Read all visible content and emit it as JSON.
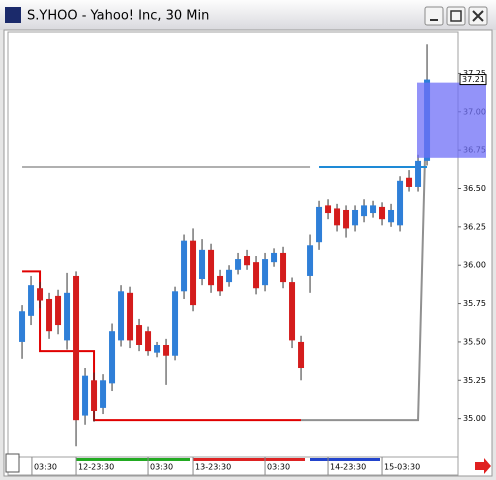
{
  "chart_data": {
    "type": "candlestick",
    "title": "S.YHOO - Yahoo! Inc, 30 Min",
    "open": [
      35.5,
      35.67,
      35.85,
      35.78,
      35.8,
      35.51,
      35.93,
      35.02,
      35.25,
      35.07,
      35.23,
      35.51,
      35.82,
      35.61,
      35.57,
      35.43,
      35.48,
      35.41,
      35.83,
      36.16,
      35.91,
      36.1,
      35.93,
      35.89,
      35.97,
      36.06,
      36.02,
      35.87,
      36.02,
      36.08,
      35.89,
      35.5,
      35.93,
      36.15,
      36.39,
      36.37,
      36.36,
      36.26,
      36.32,
      36.34,
      36.38,
      36.28,
      36.26,
      36.57,
      36.51,
      36.68
    ],
    "high": [
      35.74,
      35.93,
      35.89,
      35.82,
      35.84,
      35.95,
      35.96,
      35.33,
      35.3,
      35.29,
      35.62,
      35.87,
      35.86,
      35.65,
      35.6,
      35.5,
      35.52,
      35.86,
      36.2,
      36.24,
      36.17,
      36.14,
      35.97,
      36.0,
      36.08,
      36.1,
      36.06,
      36.08,
      36.11,
      36.12,
      35.92,
      35.54,
      36.2,
      36.42,
      36.43,
      36.4,
      36.39,
      36.39,
      36.43,
      36.42,
      36.41,
      36.4,
      36.58,
      36.62,
      36.72,
      37.44
    ],
    "low": [
      35.39,
      35.61,
      35.72,
      35.52,
      35.55,
      35.45,
      34.82,
      34.96,
      34.98,
      35.03,
      35.18,
      35.47,
      35.46,
      35.44,
      35.41,
      35.4,
      35.22,
      35.38,
      35.78,
      35.7,
      35.87,
      35.82,
      35.8,
      35.86,
      35.94,
      35.97,
      35.81,
      35.83,
      35.99,
      35.85,
      35.46,
      35.25,
      35.82,
      36.1,
      36.3,
      36.22,
      36.18,
      36.22,
      36.28,
      36.31,
      36.26,
      36.25,
      36.22,
      36.48,
      36.48,
      36.65
    ],
    "close": [
      35.7,
      35.87,
      35.77,
      35.57,
      35.61,
      35.82,
      34.99,
      35.28,
      35.05,
      35.25,
      35.57,
      35.83,
      35.51,
      35.48,
      35.44,
      35.48,
      35.41,
      35.83,
      36.16,
      35.74,
      36.1,
      35.87,
      35.83,
      35.97,
      36.04,
      36.0,
      35.85,
      36.04,
      36.08,
      35.89,
      35.51,
      35.33,
      36.13,
      36.38,
      36.34,
      36.26,
      36.24,
      36.36,
      36.39,
      36.39,
      36.3,
      36.36,
      36.55,
      36.51,
      36.68,
      37.21
    ],
    "up_color": "#2f7fd8",
    "down_color": "#d41c1c",
    "series": [
      {
        "color": "#e00000",
        "step": true,
        "values": [
          35.96,
          35.96,
          35.44,
          35.44,
          35.44,
          35.44,
          35.44,
          35.44,
          34.99,
          34.99,
          34.99,
          34.99,
          34.99,
          34.99,
          34.99,
          34.99,
          34.99,
          34.99,
          34.99,
          34.99,
          34.99,
          34.99,
          34.99,
          34.99,
          34.99,
          34.99,
          34.99,
          34.99,
          34.99,
          34.99,
          34.99,
          34.99,
          null,
          null,
          null,
          null,
          null,
          null,
          null,
          null,
          null,
          null,
          null,
          null,
          null,
          null
        ]
      },
      {
        "color": "#909090",
        "step": false,
        "values": [
          null,
          null,
          null,
          null,
          null,
          null,
          null,
          null,
          null,
          null,
          null,
          null,
          null,
          null,
          null,
          null,
          null,
          null,
          null,
          null,
          null,
          null,
          null,
          null,
          null,
          null,
          null,
          null,
          null,
          null,
          null,
          34.99,
          34.99,
          34.99,
          34.99,
          34.99,
          34.99,
          34.99,
          34.99,
          34.99,
          34.99,
          34.99,
          34.99,
          34.99,
          34.99,
          37.21
        ]
      },
      {
        "color": "#b0b0b0",
        "step": false,
        "values": [
          36.64,
          36.64,
          36.64,
          36.64,
          36.64,
          36.64,
          36.64,
          36.64,
          36.64,
          36.64,
          36.64,
          36.64,
          36.64,
          36.64,
          36.64,
          36.64,
          36.64,
          36.64,
          36.64,
          36.64,
          36.64,
          36.64,
          36.64,
          36.64,
          36.64,
          36.64,
          36.64,
          36.64,
          36.64,
          36.64,
          36.64,
          36.64,
          36.64,
          null,
          null,
          null,
          null,
          null,
          null,
          null,
          null,
          null,
          null,
          null,
          null,
          null
        ]
      },
      {
        "color": "#1e8ad6",
        "step": false,
        "values": [
          null,
          null,
          null,
          null,
          null,
          null,
          null,
          null,
          null,
          null,
          null,
          null,
          null,
          null,
          null,
          null,
          null,
          null,
          null,
          null,
          null,
          null,
          null,
          null,
          null,
          null,
          null,
          null,
          null,
          null,
          null,
          null,
          null,
          36.64,
          36.64,
          36.64,
          36.64,
          36.64,
          36.64,
          36.64,
          36.64,
          36.64,
          36.64,
          36.64,
          36.64,
          36.64
        ]
      }
    ],
    "band": [
      36.7,
      37.19
    ],
    "band_color": "#6f6ff7",
    "last_price": 37.21,
    "ylim": [
      34.75,
      37.52
    ],
    "yticks": [
      {
        "value": 35,
        "label": "35.00"
      },
      {
        "value": 35.25,
        "label": "35.25"
      },
      {
        "value": 35.5,
        "label": "35.50"
      },
      {
        "value": 35.75,
        "label": "35.75"
      },
      {
        "value": 36,
        "label": "36.00"
      },
      {
        "value": 36.25,
        "label": "36.25"
      },
      {
        "value": 36.5,
        "label": "36.50"
      },
      {
        "value": 36.75,
        "label": "36.75"
      },
      {
        "value": 37,
        "label": "37.00"
      },
      {
        "value": 37.25,
        "label": "37.25"
      }
    ],
    "xlim": [
      -1.56,
      48.44
    ],
    "xticks": [
      {
        "value": 1.1,
        "label": "03:30"
      },
      {
        "value": 6,
        "label": "12-23:30"
      },
      {
        "value": 14,
        "label": "03:30"
      },
      {
        "value": 19,
        "label": "13-23:30"
      },
      {
        "value": 27,
        "label": "03:30"
      },
      {
        "value": 34,
        "label": "14-23:30"
      },
      {
        "value": 40,
        "label": "15-03:30"
      }
    ]
  }
}
